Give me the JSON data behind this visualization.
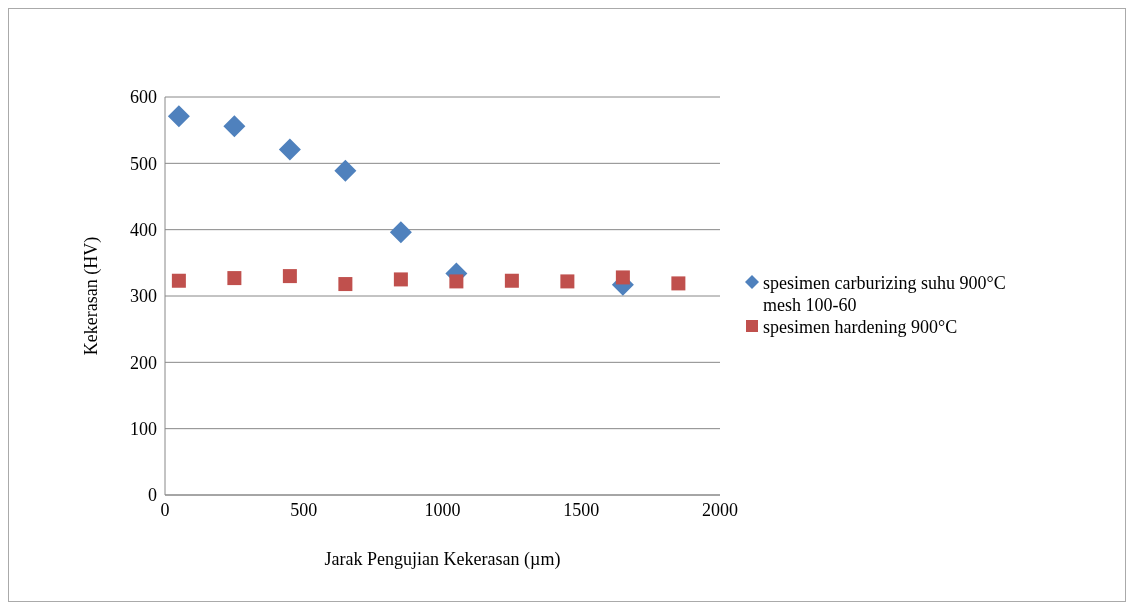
{
  "chart_data": {
    "type": "scatter",
    "xlabel": "Jarak Pengujian Kekerasan (µm)",
    "ylabel": "Kekerasan (HV)",
    "x": [
      50,
      250,
      450,
      650,
      850,
      1050,
      1250,
      1450,
      1650,
      1850
    ],
    "series": [
      {
        "name": "spesimen carburizing suhu 900°C mesh 100-60",
        "color": "#4f81bd",
        "marker": "diamond",
        "values": [
          571,
          556,
          521,
          489,
          396,
          334,
          null,
          null,
          317,
          null
        ]
      },
      {
        "name": "spesimen hardening 900°C",
        "color": "#c0504d",
        "marker": "square",
        "values": [
          323,
          327,
          330,
          318,
          325,
          322,
          323,
          322,
          328,
          319
        ]
      }
    ],
    "xlim": [
      0,
      2000
    ],
    "xticks": [
      0,
      500,
      1000,
      1500,
      2000
    ],
    "ylim": [
      0,
      600
    ],
    "yticks": [
      0,
      100,
      200,
      300,
      400,
      500,
      600
    ],
    "grid": "y",
    "legend": "right"
  }
}
